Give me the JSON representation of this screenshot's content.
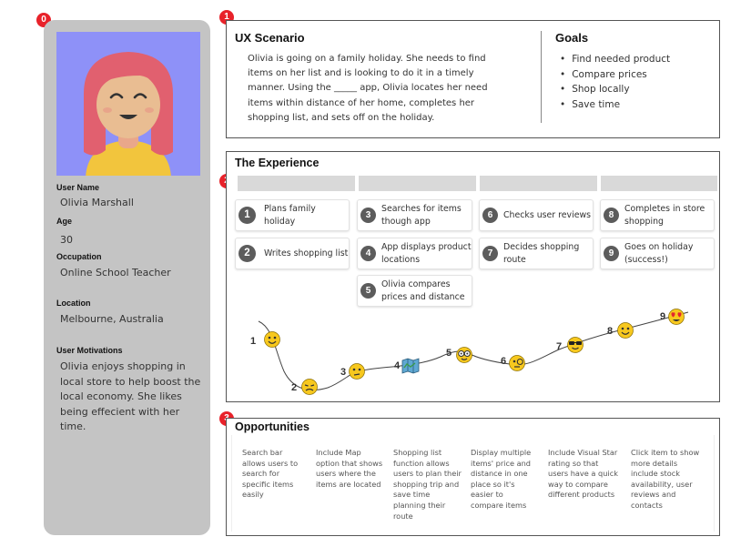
{
  "badges": [
    "0",
    "1",
    "2",
    "3"
  ],
  "persona": {
    "fields": [
      {
        "label": "User Name",
        "value": "Olivia Marshall"
      },
      {
        "label": "Age",
        "value": "30"
      },
      {
        "label": "Occupation",
        "value": "Online School Teacher"
      },
      {
        "label": "Location",
        "value": "Melbourne, Australia"
      }
    ],
    "motivations_label": "User Motivations",
    "motivations": "Olivia enjoys shopping in local store to help boost the local economy. She likes being effecient with her time."
  },
  "scenario": {
    "title": "UX Scenario",
    "text": "Olivia is going on a family holiday. She needs to find items on her list and is looking to do it in a timely manner. Using the _____ app, Olivia locates her need items within distance of her home, completes her shopping list, and sets off on the holiday."
  },
  "goals": {
    "title": "Goals",
    "items": [
      "Find needed product",
      "Compare prices",
      "Shop locally",
      "Save time"
    ]
  },
  "experience": {
    "title": "The Experience",
    "steps": [
      {
        "num": "1",
        "label": "Plans family holiday"
      },
      {
        "num": "2",
        "label": "Writes shopping list"
      },
      {
        "num": "3",
        "label": "Searches for items though app"
      },
      {
        "num": "4",
        "label": "App displays product locations"
      },
      {
        "num": "5",
        "label": "Olivia compares prices and distance"
      },
      {
        "num": "6",
        "label": "Checks user reviews"
      },
      {
        "num": "7",
        "label": "Decides shopping route"
      },
      {
        "num": "8",
        "label": "Completes in store shopping"
      },
      {
        "num": "9",
        "label": "Goes on holiday (success!)"
      }
    ],
    "journey": [
      {
        "num": "1",
        "icon": "smiling-face-icon"
      },
      {
        "num": "2",
        "icon": "sad-face-icon"
      },
      {
        "num": "3",
        "icon": "neutral-face-icon"
      },
      {
        "num": "4",
        "icon": "map-icon"
      },
      {
        "num": "5",
        "icon": "nerd-face-icon"
      },
      {
        "num": "6",
        "icon": "monocle-face-icon"
      },
      {
        "num": "7",
        "icon": "sunglasses-face-icon"
      },
      {
        "num": "8",
        "icon": "smiling-face-icon"
      },
      {
        "num": "9",
        "icon": "heart-eyes-face-icon"
      }
    ]
  },
  "opportunities": {
    "title": "Opportunities",
    "items": [
      "Search bar allows users to search for specific items easily",
      "Include Map option that shows users where the items  are located",
      "Shopping list function allows users to plan their shopping trip and save time planning their route",
      "Display multiple items' price and distance in one place so it's easier to compare items",
      "Include Visual Star rating so that users have a quick way to compare different products",
      "Click item to show more details include stock availability, user reviews and contacts"
    ]
  },
  "colors": {
    "badge": "#e8222a",
    "persona_bg": "#c4c4c4",
    "avatar_bg": "#8e91f8",
    "emoji": "#f7c81e",
    "step_num": "#5c5c5c"
  }
}
